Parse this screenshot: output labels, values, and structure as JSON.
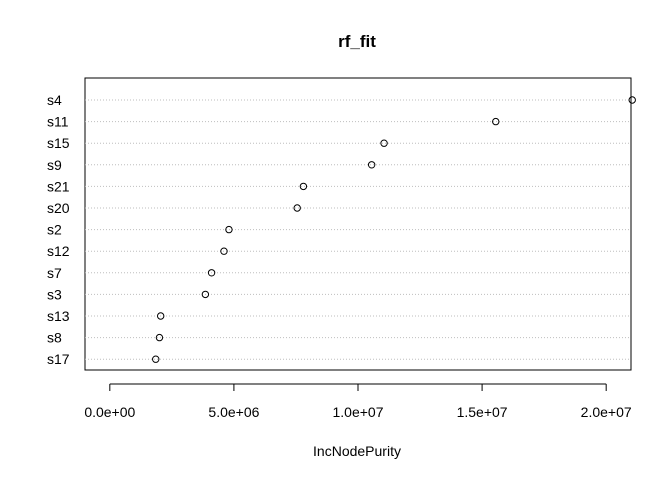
{
  "chart_data": {
    "type": "scatter",
    "title": "rf_fit",
    "xlabel": "IncNodePurity",
    "ylabel": "",
    "xlim": [
      -1000000,
      21000000
    ],
    "grid": "dotted horizontal lines per category",
    "x_ticks": [
      0,
      5000000,
      10000000,
      15000000,
      20000000
    ],
    "x_tick_labels": [
      "0.0e+00",
      "5.0e+06",
      "1.0e+07",
      "1.5e+07",
      "2.0e+07"
    ],
    "categories": [
      "s4",
      "s11",
      "s15",
      "s9",
      "s21",
      "s20",
      "s2",
      "s12",
      "s7",
      "s3",
      "s13",
      "s8",
      "s17"
    ],
    "values": [
      21050000,
      15550000,
      11050000,
      10550000,
      7800000,
      7550000,
      4800000,
      4600000,
      4100000,
      3850000,
      2050000,
      2000000,
      1850000
    ]
  }
}
